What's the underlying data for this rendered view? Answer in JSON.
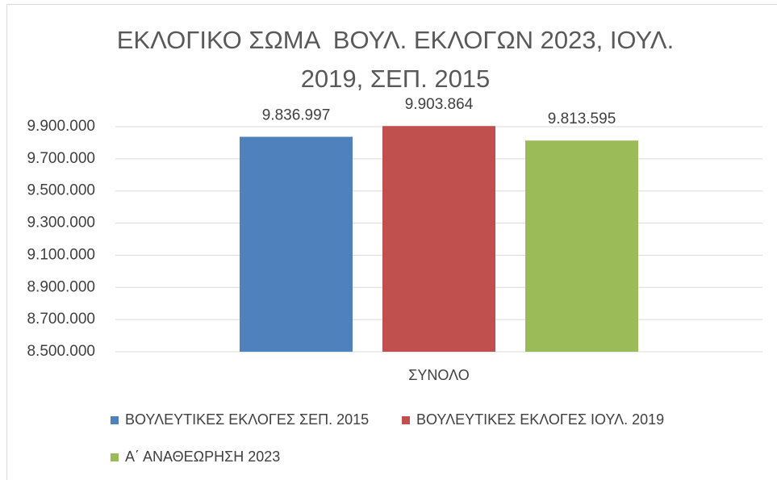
{
  "chart_data": {
    "type": "bar",
    "title": "ΕΚΛΟΓΙΚΟ ΣΩΜΑ  ΒΟΥΛ. ΕΚΛΟΓΩΝ 2023, ΙΟΥΛ. 2019, ΣΕΠ. 2015",
    "categories": [
      "ΣΥΝΟΛΟ"
    ],
    "series": [
      {
        "name": "ΒΟΥΛΕΥΤΙΚΕΣ ΕΚΛΟΓΕΣ ΣΕΠ. 2015",
        "color": "#4f81bd",
        "values": [
          9836997
        ],
        "value_labels": [
          "9.836.997"
        ]
      },
      {
        "name": "ΒΟΥΛΕΥΤΙΚΕΣ ΕΚΛΟΓΕΣ ΙΟΥΛ. 2019",
        "color": "#c0504d",
        "values": [
          9903864
        ],
        "value_labels": [
          "9.903.864"
        ]
      },
      {
        "name": "Α΄ ΑΝΑΘΕΩΡΗΣΗ 2023",
        "color": "#9bbb59",
        "values": [
          9813595
        ],
        "value_labels": [
          "9.813.595"
        ]
      }
    ],
    "ylim": [
      8500000,
      9900000
    ],
    "yticks": [
      {
        "value": 8500000,
        "label": "8.500.000"
      },
      {
        "value": 8700000,
        "label": "8.700.000"
      },
      {
        "value": 8900000,
        "label": "8.900.000"
      },
      {
        "value": 9100000,
        "label": "9.100.000"
      },
      {
        "value": 9300000,
        "label": "9.300.000"
      },
      {
        "value": 9500000,
        "label": "9.500.000"
      },
      {
        "value": 9700000,
        "label": "9.700.000"
      },
      {
        "value": 9900000,
        "label": "9.900.000"
      }
    ],
    "grid": true,
    "legend": "bottom"
  }
}
